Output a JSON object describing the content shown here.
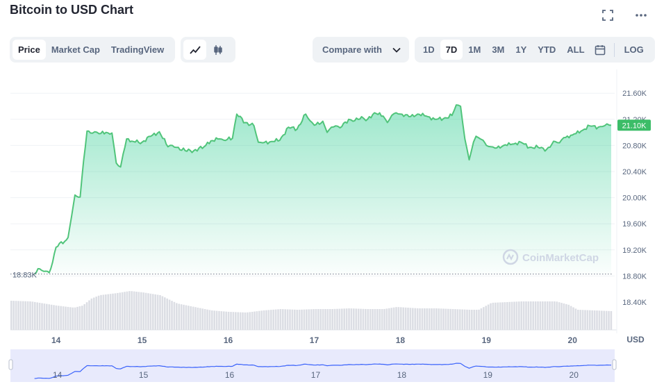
{
  "header": {
    "title": "Bitcoin to USD Chart"
  },
  "icons": {
    "expand": "fullscreen-icon",
    "more": "more-horizontal-icon",
    "line": "line-chart-icon",
    "candle": "candlestick-icon",
    "calendar": "calendar-icon",
    "chevron": "chevron-down-icon"
  },
  "toolbar": {
    "views": [
      "Price",
      "Market Cap",
      "TradingView"
    ],
    "active_view": "Price",
    "compare_label": "Compare with",
    "ranges": [
      "1D",
      "7D",
      "1M",
      "3M",
      "1Y",
      "YTD",
      "ALL"
    ],
    "active_range": "7D",
    "log_label": "LOG"
  },
  "watermark": "CoinMarketCap",
  "colors": {
    "line": "#16c784",
    "line_dark": "#50c47a",
    "volume": "#dcdee4",
    "nav_fill": "#e8eafc",
    "nav_line": "#3861fb",
    "badge": "#3cbd68"
  },
  "chart_data": {
    "type": "area",
    "currency_label": "USD",
    "price_label": "21.10K",
    "min_label": "18.83K",
    "y_ticks": [
      "21.60K",
      "21.20K",
      "20.80K",
      "20.40K",
      "20.00K",
      "19.60K",
      "19.20K",
      "18.80K",
      "18.40K"
    ],
    "y_tick_values": [
      21600,
      21200,
      20800,
      20400,
      20000,
      19600,
      19200,
      18800,
      18400
    ],
    "x_ticks": [
      "14",
      "15",
      "16",
      "17",
      "18",
      "19",
      "20"
    ],
    "x_tick_positions": [
      14,
      15,
      16,
      17,
      18,
      19,
      20
    ],
    "ylim": [
      18400,
      21800
    ],
    "xlim": [
      13.47,
      20.45
    ],
    "grid": true,
    "series": [
      {
        "x": [
          13.75,
          13.81,
          13.86,
          13.92,
          13.96,
          14.0,
          14.04,
          14.1,
          14.14,
          14.18,
          14.22,
          14.28,
          14.32,
          14.36,
          14.4,
          14.45,
          14.5,
          14.58,
          14.65,
          14.7,
          14.75,
          14.78,
          14.82,
          14.9,
          15.0,
          15.1,
          15.2,
          15.3,
          15.35,
          15.4,
          15.5,
          15.6,
          15.72,
          15.8,
          15.9,
          15.95,
          16.05,
          16.1,
          16.2,
          16.3,
          16.35,
          16.4,
          16.5,
          16.6,
          16.7,
          16.8,
          16.9,
          16.95,
          17.0,
          17.1,
          17.15,
          17.2,
          17.25,
          17.3,
          17.4,
          17.45,
          17.55,
          17.6,
          17.7,
          17.8,
          17.85,
          17.9,
          17.95,
          18.0,
          18.1,
          18.2,
          18.3,
          18.4,
          18.5,
          18.6,
          18.65,
          18.7,
          18.75,
          18.8,
          18.85,
          18.88,
          18.93,
          18.96,
          19.0,
          19.05,
          19.1,
          19.2,
          19.3,
          19.4,
          19.5,
          19.6,
          19.7,
          19.8,
          19.85,
          19.9,
          20.0,
          20.1,
          20.2,
          20.3,
          20.35,
          20.4,
          20.43,
          20.45
        ],
        "values": [
          18830,
          18910,
          18870,
          18850,
          19010,
          19240,
          19300,
          19330,
          19390,
          19710,
          20040,
          20010,
          20560,
          21020,
          20990,
          21010,
          20980,
          21000,
          20990,
          20530,
          20470,
          20670,
          20900,
          20860,
          20850,
          20940,
          21010,
          20780,
          20800,
          20770,
          20720,
          20720,
          20780,
          20870,
          20900,
          20880,
          20910,
          21280,
          21150,
          21100,
          20850,
          20840,
          20860,
          20880,
          21080,
          21050,
          21280,
          21180,
          21110,
          21170,
          21000,
          21080,
          21100,
          21070,
          21200,
          21170,
          21240,
          21180,
          21300,
          21250,
          21150,
          21260,
          21300,
          21280,
          21240,
          21280,
          21250,
          21200,
          21210,
          21260,
          21420,
          21400,
          20900,
          20580,
          20850,
          20940,
          20900,
          20880,
          20800,
          20780,
          20760,
          20800,
          20820,
          20850,
          20770,
          20770,
          20740,
          20860,
          20840,
          20920,
          20960,
          21020,
          21100,
          21080,
          21090,
          21130,
          21110,
          21110
        ]
      }
    ],
    "volume": {
      "x": [
        13.47,
        13.7,
        13.8,
        14.0,
        14.2,
        14.3,
        14.4,
        14.5,
        14.7,
        14.85,
        15.0,
        15.2,
        15.3,
        15.4,
        15.6,
        15.8,
        16.0,
        16.2,
        16.4,
        16.6,
        16.8,
        17.0,
        17.2,
        17.4,
        17.6,
        17.8,
        17.95,
        18.2,
        18.4,
        18.6,
        18.8,
        18.9,
        19.05,
        19.4,
        19.8,
        19.95,
        20.05,
        20.45
      ],
      "values": [
        0.42,
        0.41,
        0.39,
        0.35,
        0.32,
        0.35,
        0.45,
        0.5,
        0.53,
        0.56,
        0.54,
        0.5,
        0.44,
        0.38,
        0.33,
        0.28,
        0.26,
        0.25,
        0.28,
        0.3,
        0.29,
        0.3,
        0.3,
        0.31,
        0.3,
        0.3,
        0.33,
        0.31,
        0.31,
        0.3,
        0.29,
        0.29,
        0.39,
        0.41,
        0.41,
        0.36,
        0.29,
        0.27
      ]
    }
  }
}
